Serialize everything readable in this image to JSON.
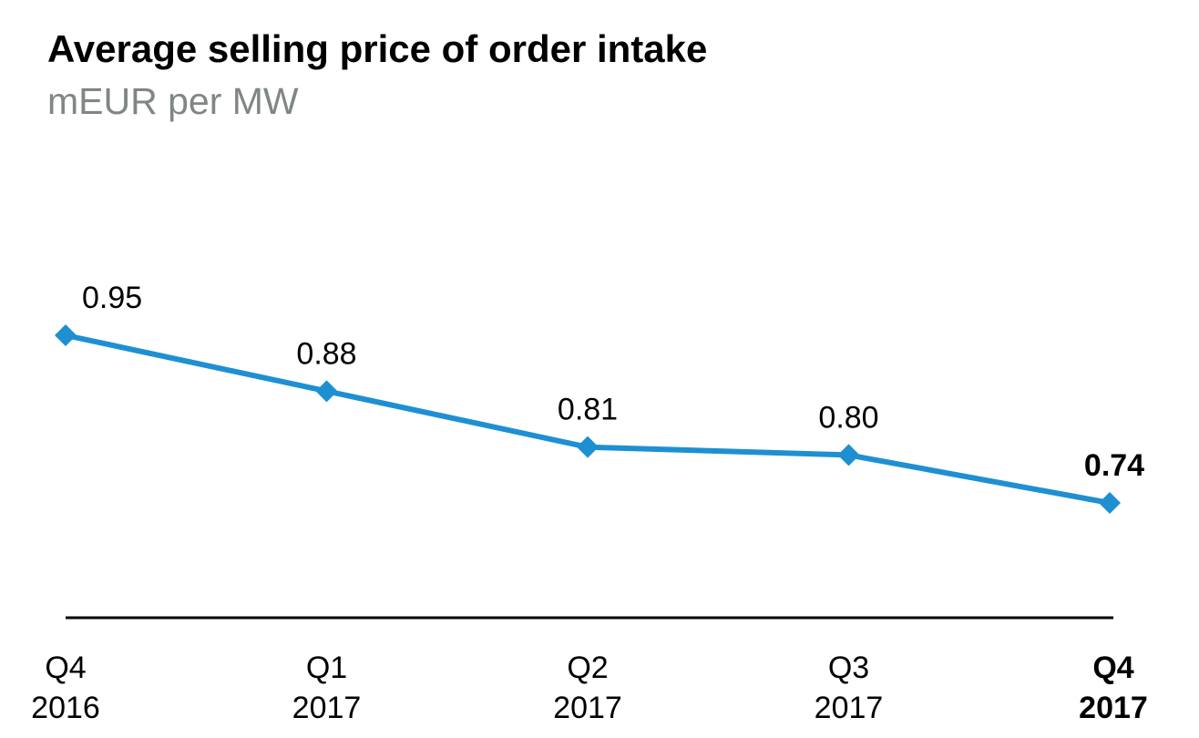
{
  "chart_data": {
    "type": "line",
    "title": "Average selling price of order intake",
    "subtitle": "mEUR per MW",
    "categories": [
      [
        "Q4",
        "2016"
      ],
      [
        "Q1",
        "2017"
      ],
      [
        "Q2",
        "2017"
      ],
      [
        "Q3",
        "2017"
      ],
      [
        "Q4",
        "2017"
      ]
    ],
    "series": [
      {
        "values": [
          0.95,
          0.88,
          0.81,
          0.8,
          0.74
        ],
        "data_labels": [
          "0.95",
          "0.88",
          "0.81",
          "0.80",
          "0.74"
        ],
        "color": "#1e90d2",
        "marker": "diamond"
      }
    ],
    "highlight_index": 4,
    "xlabel": "",
    "ylabel": "",
    "grid": false,
    "legend": "none"
  }
}
